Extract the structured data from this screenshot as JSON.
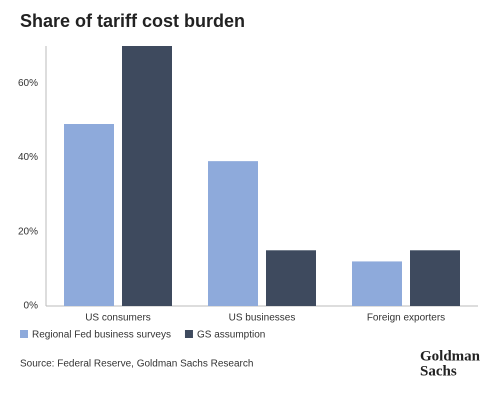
{
  "chart_data": {
    "type": "bar",
    "title": "Share of tariff cost burden",
    "categories": [
      "US consumers",
      "US businesses",
      "Foreign exporters"
    ],
    "series": [
      {
        "name": "Regional Fed business surveys",
        "color": "#8eaadb",
        "values": [
          49,
          39,
          12
        ]
      },
      {
        "name": "GS assumption",
        "color": "#3e4a5e",
        "values": [
          70,
          15,
          15
        ]
      }
    ],
    "ylim": [
      0,
      70
    ],
    "yticks": [
      {
        "value": 0,
        "label": "0%"
      },
      {
        "value": 20,
        "label": "20%"
      },
      {
        "value": 40,
        "label": "40%"
      },
      {
        "value": 60,
        "label": "60%"
      }
    ],
    "grid": false,
    "legend": "bottom-left",
    "source": "Source: Federal Reserve, Goldman Sachs Research",
    "logo": [
      "Goldman",
      "Sachs"
    ]
  }
}
